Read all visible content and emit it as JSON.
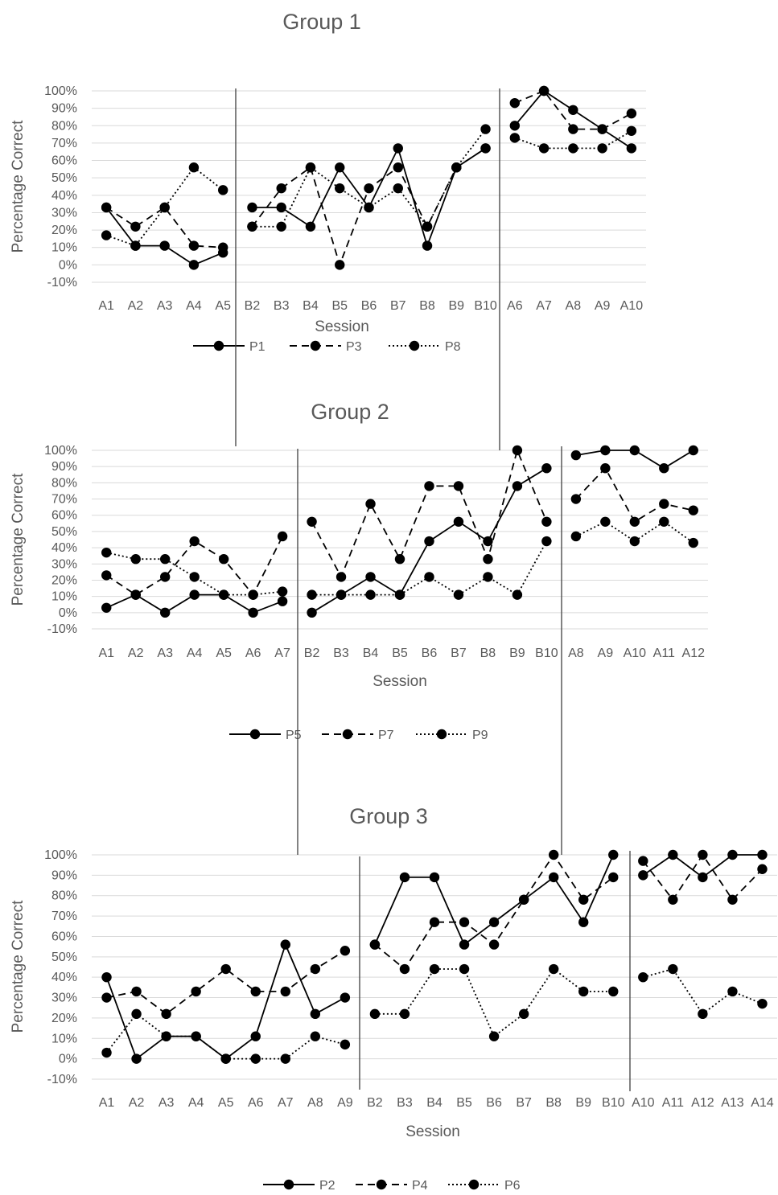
{
  "chart_data": [
    {
      "type": "line",
      "title": "Group 1",
      "xlabel": "Session",
      "ylabel": "Percentage Correct",
      "ylim": [
        -10,
        100
      ],
      "yticks": [
        "-10%",
        "0%",
        "10%",
        "20%",
        "30%",
        "40%",
        "50%",
        "60%",
        "70%",
        "80%",
        "90%",
        "100%"
      ],
      "categories": [
        "A1",
        "A2",
        "A3",
        "A4",
        "A5",
        "B2",
        "B3",
        "B4",
        "B5",
        "B6",
        "B7",
        "B8",
        "B9",
        "B10",
        "A6",
        "A7",
        "A8",
        "A9",
        "A10"
      ],
      "phase_segments": [
        [
          0,
          4
        ],
        [
          5,
          13
        ],
        [
          14,
          18
        ]
      ],
      "grid": true,
      "legend_position": "bottom",
      "series": [
        {
          "name": "P1",
          "style": "solid",
          "values": [
            33,
            11,
            11,
            0,
            7,
            33,
            33,
            22,
            56,
            33,
            67,
            11,
            56,
            67,
            80,
            100,
            89,
            78,
            67
          ]
        },
        {
          "name": "P3",
          "style": "dashed",
          "values": [
            33,
            22,
            33,
            11,
            10,
            22,
            44,
            56,
            0,
            44,
            56,
            22,
            56,
            67,
            93,
            100,
            78,
            78,
            87
          ]
        },
        {
          "name": "P8",
          "style": "dotted",
          "values": [
            17,
            11,
            33,
            56,
            43,
            22,
            22,
            56,
            44,
            33,
            44,
            22,
            56,
            78,
            73,
            67,
            67,
            67,
            77
          ]
        }
      ]
    },
    {
      "type": "line",
      "title": "Group 2",
      "xlabel": "Session",
      "ylabel": "Percentage Correct",
      "ylim": [
        -10,
        100
      ],
      "yticks": [
        "-10%",
        "0%",
        "10%",
        "20%",
        "30%",
        "40%",
        "50%",
        "60%",
        "70%",
        "80%",
        "90%",
        "100%"
      ],
      "categories": [
        "A1",
        "A2",
        "A3",
        "A4",
        "A5",
        "A6",
        "A7",
        "B2",
        "B3",
        "B4",
        "B5",
        "B6",
        "B7",
        "B8",
        "B9",
        "B10",
        "A8",
        "A9",
        "A10",
        "A11",
        "A12"
      ],
      "phase_segments": [
        [
          0,
          6
        ],
        [
          7,
          15
        ],
        [
          16,
          20
        ]
      ],
      "grid": true,
      "legend_position": "bottom",
      "series": [
        {
          "name": "P5",
          "style": "solid",
          "values": [
            3,
            11,
            0,
            11,
            11,
            0,
            7,
            0,
            11,
            22,
            11,
            44,
            56,
            44,
            78,
            89,
            97,
            100,
            100,
            89,
            100
          ]
        },
        {
          "name": "P7",
          "style": "dashed",
          "values": [
            23,
            11,
            22,
            44,
            33,
            11,
            47,
            56,
            22,
            67,
            33,
            78,
            78,
            33,
            100,
            56,
            70,
            89,
            56,
            67,
            63
          ]
        },
        {
          "name": "P9",
          "style": "dotted",
          "values": [
            37,
            33,
            33,
            22,
            11,
            11,
            13,
            11,
            11,
            11,
            11,
            22,
            11,
            22,
            11,
            44,
            47,
            56,
            44,
            56,
            43
          ]
        }
      ]
    },
    {
      "type": "line",
      "title": "Group 3",
      "xlabel": "Session",
      "ylabel": "Percentage Correct",
      "ylim": [
        -10,
        100
      ],
      "yticks": [
        "-10%",
        "0%",
        "10%",
        "20%",
        "30%",
        "40%",
        "50%",
        "60%",
        "70%",
        "80%",
        "90%",
        "100%"
      ],
      "categories": [
        "A1",
        "A2",
        "A3",
        "A4",
        "A5",
        "A6",
        "A7",
        "A8",
        "A9",
        "B2",
        "B3",
        "B4",
        "B5",
        "B6",
        "B7",
        "B8",
        "B9",
        "B10",
        "A10",
        "A11",
        "A12",
        "A13",
        "A14"
      ],
      "phase_segments": [
        [
          0,
          8
        ],
        [
          9,
          17
        ],
        [
          18,
          22
        ]
      ],
      "grid": true,
      "legend_position": "bottom",
      "series": [
        {
          "name": "P2",
          "style": "solid",
          "values": [
            40,
            0,
            11,
            11,
            0,
            11,
            56,
            22,
            30,
            56,
            89,
            89,
            56,
            67,
            78,
            89,
            67,
            100,
            90,
            100,
            89,
            100,
            100
          ]
        },
        {
          "name": "P4",
          "style": "dashed",
          "values": [
            30,
            33,
            22,
            33,
            44,
            33,
            33,
            44,
            53,
            56,
            44,
            67,
            67,
            56,
            78,
            100,
            78,
            89,
            97,
            78,
            100,
            78,
            93
          ]
        },
        {
          "name": "P6",
          "style": "dotted",
          "values": [
            3,
            22,
            11,
            11,
            0,
            0,
            0,
            11,
            7,
            22,
            22,
            44,
            44,
            11,
            22,
            44,
            33,
            33,
            40,
            44,
            22,
            33,
            27
          ]
        }
      ]
    }
  ]
}
